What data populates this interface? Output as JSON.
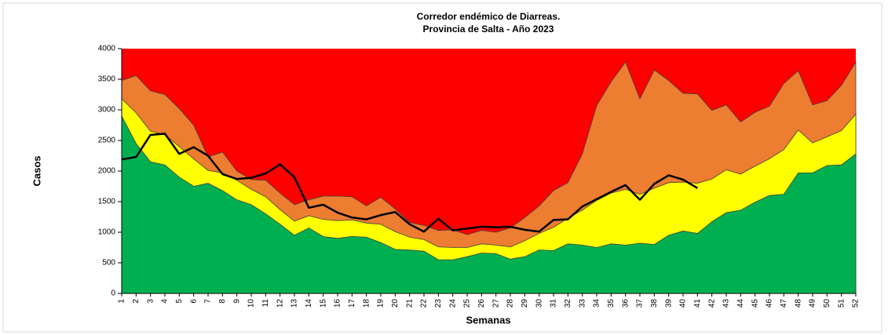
{
  "chart_data": {
    "type": "area",
    "title": "Corredor endémico de Diarreas.",
    "subtitle": "Provincia de Salta - Año 2023",
    "x_label": "Semanas",
    "y_label": "Casos",
    "background_color": "#ff0000",
    "categories": [
      "1",
      "2",
      "3",
      "4",
      "5",
      "6",
      "7",
      "8",
      "9",
      "10",
      "11",
      "12",
      "13",
      "14",
      "15",
      "16",
      "17",
      "18",
      "19",
      "20",
      "21",
      "22",
      "23",
      "24",
      "25",
      "26",
      "27",
      "28",
      "29",
      "30",
      "31",
      "32",
      "33",
      "34",
      "35",
      "36",
      "37",
      "38",
      "39",
      "40",
      "41",
      "42",
      "43",
      "44",
      "45",
      "46",
      "47",
      "48",
      "49",
      "50",
      "51",
      "52"
    ],
    "ylim": [
      0,
      4000
    ],
    "yticks": [
      0,
      500,
      1000,
      1500,
      2000,
      2500,
      3000,
      3500,
      4000
    ],
    "series": [
      {
        "color": "#ed7d31",
        "values": [
          3480,
          3560,
          3310,
          3250,
          3020,
          2750,
          2230,
          2310,
          2000,
          1860,
          1850,
          1640,
          1450,
          1530,
          1590,
          1590,
          1580,
          1430,
          1570,
          1380,
          1160,
          1110,
          1030,
          1040,
          960,
          1030,
          1000,
          1070,
          1240,
          1430,
          1680,
          1810,
          2280,
          3070,
          3460,
          3780,
          3180,
          3650,
          3480,
          3270,
          3260,
          2990,
          3080,
          2800,
          2960,
          3060,
          3430,
          3640,
          3080,
          3150,
          3400,
          3780
        ]
      },
      {
        "color": "#ffff00",
        "values": [
          3180,
          2950,
          2650,
          2590,
          2400,
          2200,
          2010,
          1970,
          1850,
          1700,
          1580,
          1370,
          1180,
          1270,
          1210,
          1190,
          1200,
          1150,
          1130,
          1010,
          920,
          880,
          760,
          750,
          750,
          810,
          790,
          760,
          860,
          980,
          1080,
          1230,
          1360,
          1520,
          1640,
          1700,
          1620,
          1720,
          1810,
          1820,
          1800,
          1870,
          2020,
          1950,
          2080,
          2200,
          2350,
          2670,
          2460,
          2560,
          2660,
          2930
        ]
      },
      {
        "color": "#00b050",
        "values": [
          2900,
          2450,
          2150,
          2100,
          1900,
          1750,
          1800,
          1680,
          1530,
          1450,
          1300,
          1130,
          950,
          1070,
          930,
          900,
          930,
          920,
          830,
          720,
          710,
          690,
          550,
          550,
          600,
          660,
          650,
          560,
          600,
          710,
          700,
          810,
          790,
          750,
          810,
          790,
          820,
          800,
          950,
          1020,
          980,
          1170,
          1320,
          1360,
          1490,
          1600,
          1620,
          1970,
          1970,
          2090,
          2100,
          2280
        ]
      },
      {
        "type": "line",
        "color": "#000000",
        "values": [
          2190,
          2230,
          2590,
          2610,
          2280,
          2390,
          2250,
          1950,
          1870,
          1890,
          1960,
          2110,
          1900,
          1400,
          1450,
          1320,
          1240,
          1210,
          1280,
          1330,
          1130,
          1010,
          1220,
          1030,
          1060,
          1090,
          1080,
          1090,
          1040,
          1010,
          1200,
          1210,
          1420,
          1540,
          1660,
          1770,
          1530,
          1790,
          1930,
          1860,
          1720,
          null,
          null,
          null,
          null,
          null,
          null,
          null,
          null,
          null,
          null,
          null
        ]
      }
    ]
  }
}
